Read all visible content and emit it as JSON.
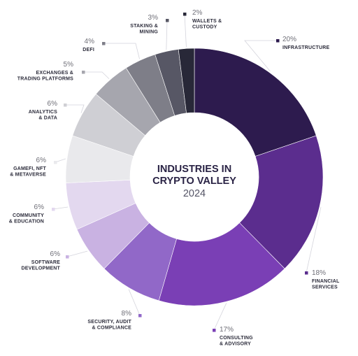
{
  "chart_data": {
    "type": "pie",
    "title_lines": [
      "INDUSTRIES IN",
      "CRYPTO VALLEY"
    ],
    "subtitle": "2024",
    "slices": [
      {
        "value": 20,
        "pct_label": "20%",
        "label_lines": [
          "INFRASTRUCTURE"
        ],
        "color": "#2d1b4e"
      },
      {
        "value": 18,
        "pct_label": "18%",
        "label_lines": [
          "FINANCIAL",
          "SERVICES"
        ],
        "color": "#5b2d8e"
      },
      {
        "value": 17,
        "pct_label": "17%",
        "label_lines": [
          "CONSULTING",
          "& ADVISORY"
        ],
        "color": "#7a3fb5"
      },
      {
        "value": 8,
        "pct_label": "8%",
        "label_lines": [
          "SECURITY, AUDIT",
          "& COMPLIANCE"
        ],
        "color": "#9168c8"
      },
      {
        "value": 6,
        "pct_label": "6%",
        "label_lines": [
          "SOFTWARE",
          "DEVELOPMENT"
        ],
        "color": "#c9b2e2"
      },
      {
        "value": 6,
        "pct_label": "6%",
        "label_lines": [
          "COMMUNITY",
          "& EDUCATION"
        ],
        "color": "#e3d8ef"
      },
      {
        "value": 6,
        "pct_label": "6%",
        "label_lines": [
          "GAMEFI, NFT",
          "& METAVERSE"
        ],
        "color": "#e9e9ec"
      },
      {
        "value": 6,
        "pct_label": "6%",
        "label_lines": [
          "ANALYTICS",
          "& DATA"
        ],
        "color": "#cfcfd4"
      },
      {
        "value": 5,
        "pct_label": "5%",
        "label_lines": [
          "EXCHANGES &",
          "TRADING PLATFORMS"
        ],
        "color": "#a6a6ae"
      },
      {
        "value": 4,
        "pct_label": "4%",
        "label_lines": [
          "DEFI"
        ],
        "color": "#7e7e88"
      },
      {
        "value": 3,
        "pct_label": "3%",
        "label_lines": [
          "STAKING &",
          "MINING"
        ],
        "color": "#575765"
      },
      {
        "value": 2,
        "pct_label": "2%",
        "label_lines": [
          "WALLETS &",
          "CUSTODY"
        ],
        "color": "#282838"
      }
    ],
    "legend": "none"
  }
}
